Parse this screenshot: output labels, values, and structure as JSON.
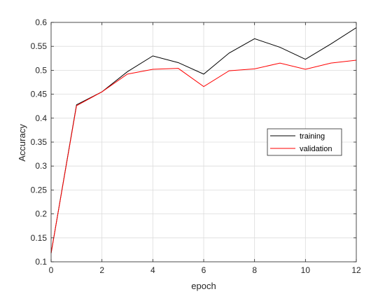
{
  "chart_data": {
    "type": "line",
    "title": "",
    "xlabel": "epoch",
    "ylabel": "Accuracy",
    "xlim": [
      0,
      12
    ],
    "ylim": [
      0.1,
      0.6
    ],
    "xticks": [
      0,
      2,
      4,
      6,
      8,
      10,
      12
    ],
    "yticks": [
      0.1,
      0.15,
      0.2,
      0.25,
      0.3,
      0.35,
      0.4,
      0.45,
      0.5,
      0.55,
      0.6
    ],
    "xtick_labels": [
      "0",
      "2",
      "4",
      "6",
      "8",
      "10",
      "12"
    ],
    "ytick_labels": [
      "0.1",
      "0.15",
      "0.2",
      "0.25",
      "0.3",
      "0.35",
      "0.4",
      "0.45",
      "0.5",
      "0.55",
      "0.6"
    ],
    "grid": true,
    "legend_position": "right",
    "x": [
      0,
      1,
      2,
      3,
      4,
      5,
      6,
      7,
      8,
      9,
      10,
      11,
      12
    ],
    "series": [
      {
        "name": "training",
        "color": "#000000",
        "values": [
          0.118,
          0.428,
          0.455,
          0.497,
          0.53,
          0.516,
          0.492,
          0.536,
          0.566,
          0.548,
          0.523,
          0.555,
          0.589
        ]
      },
      {
        "name": "validation",
        "color": "#ff0000",
        "values": [
          0.118,
          0.426,
          0.455,
          0.492,
          0.502,
          0.504,
          0.466,
          0.499,
          0.503,
          0.515,
          0.502,
          0.515,
          0.521
        ]
      }
    ]
  }
}
